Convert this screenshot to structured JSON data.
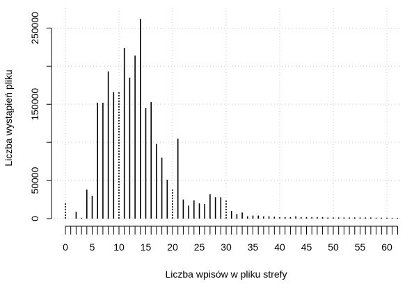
{
  "chart_data": {
    "type": "bar",
    "title": "",
    "xlabel": "Liczba wpisów w pliku strefy",
    "ylabel": "Liczba wystąpień pliku",
    "xlim": [
      0,
      62
    ],
    "ylim": [
      0,
      260000
    ],
    "grid": true,
    "legend": "none",
    "x_ticks": [
      0,
      5,
      10,
      15,
      20,
      25,
      30,
      35,
      40,
      45,
      50,
      55,
      60
    ],
    "y_ticks": [
      0,
      50000,
      150000,
      250000
    ],
    "y_grid": [
      0,
      50000,
      100000,
      150000,
      200000,
      250000
    ],
    "x_grid": [
      0,
      10,
      20,
      30,
      40,
      50,
      60
    ],
    "bar_color": "#000000",
    "grid_color": "#c8c8c8",
    "points": [
      {
        "x": 0,
        "y": 21000,
        "dotted": true
      },
      {
        "x": 2,
        "y": 9000
      },
      {
        "x": 3,
        "y": 1000
      },
      {
        "x": 4,
        "y": 38000
      },
      {
        "x": 5,
        "y": 30000
      },
      {
        "x": 6,
        "y": 152000
      },
      {
        "x": 7,
        "y": 152000
      },
      {
        "x": 8,
        "y": 193000
      },
      {
        "x": 9,
        "y": 166000
      },
      {
        "x": 10,
        "y": 167000,
        "dotted": true
      },
      {
        "x": 11,
        "y": 224000
      },
      {
        "x": 12,
        "y": 185000
      },
      {
        "x": 13,
        "y": 214000
      },
      {
        "x": 14,
        "y": 262000
      },
      {
        "x": 15,
        "y": 145000
      },
      {
        "x": 16,
        "y": 153000
      },
      {
        "x": 17,
        "y": 98000
      },
      {
        "x": 18,
        "y": 80000
      },
      {
        "x": 19,
        "y": 51000
      },
      {
        "x": 20,
        "y": 38000,
        "dotted": true
      },
      {
        "x": 21,
        "y": 105000
      },
      {
        "x": 22,
        "y": 25000
      },
      {
        "x": 23,
        "y": 17000
      },
      {
        "x": 24,
        "y": 24000
      },
      {
        "x": 25,
        "y": 20000
      },
      {
        "x": 26,
        "y": 19000
      },
      {
        "x": 27,
        "y": 32000
      },
      {
        "x": 28,
        "y": 28000
      },
      {
        "x": 29,
        "y": 28000
      },
      {
        "x": 30,
        "y": 25000,
        "dotted": true
      },
      {
        "x": 31,
        "y": 10000
      },
      {
        "x": 32,
        "y": 6000
      },
      {
        "x": 33,
        "y": 8000
      },
      {
        "x": 34,
        "y": 3000
      },
      {
        "x": 35,
        "y": 4000
      },
      {
        "x": 36,
        "y": 4000
      },
      {
        "x": 37,
        "y": 3000
      },
      {
        "x": 38,
        "y": 3000
      },
      {
        "x": 39,
        "y": 2500
      },
      {
        "x": 40,
        "y": 2500,
        "dotted": true
      },
      {
        "x": 41,
        "y": 2000
      },
      {
        "x": 42,
        "y": 2000
      },
      {
        "x": 43,
        "y": 3000
      },
      {
        "x": 44,
        "y": 2000
      },
      {
        "x": 45,
        "y": 2000
      },
      {
        "x": 46,
        "y": 2000
      },
      {
        "x": 47,
        "y": 2000
      },
      {
        "x": 48,
        "y": 2000
      },
      {
        "x": 49,
        "y": 1500
      },
      {
        "x": 50,
        "y": 1500,
        "dotted": true
      },
      {
        "x": 51,
        "y": 1500
      },
      {
        "x": 52,
        "y": 1500
      },
      {
        "x": 53,
        "y": 1500
      },
      {
        "x": 54,
        "y": 1500
      },
      {
        "x": 55,
        "y": 1500
      },
      {
        "x": 56,
        "y": 1500
      },
      {
        "x": 57,
        "y": 1500
      },
      {
        "x": 58,
        "y": 1200
      },
      {
        "x": 59,
        "y": 1200
      },
      {
        "x": 60,
        "y": 1200,
        "dotted": true
      },
      {
        "x": 61,
        "y": 1000
      },
      {
        "x": 62,
        "y": 1000
      }
    ]
  }
}
